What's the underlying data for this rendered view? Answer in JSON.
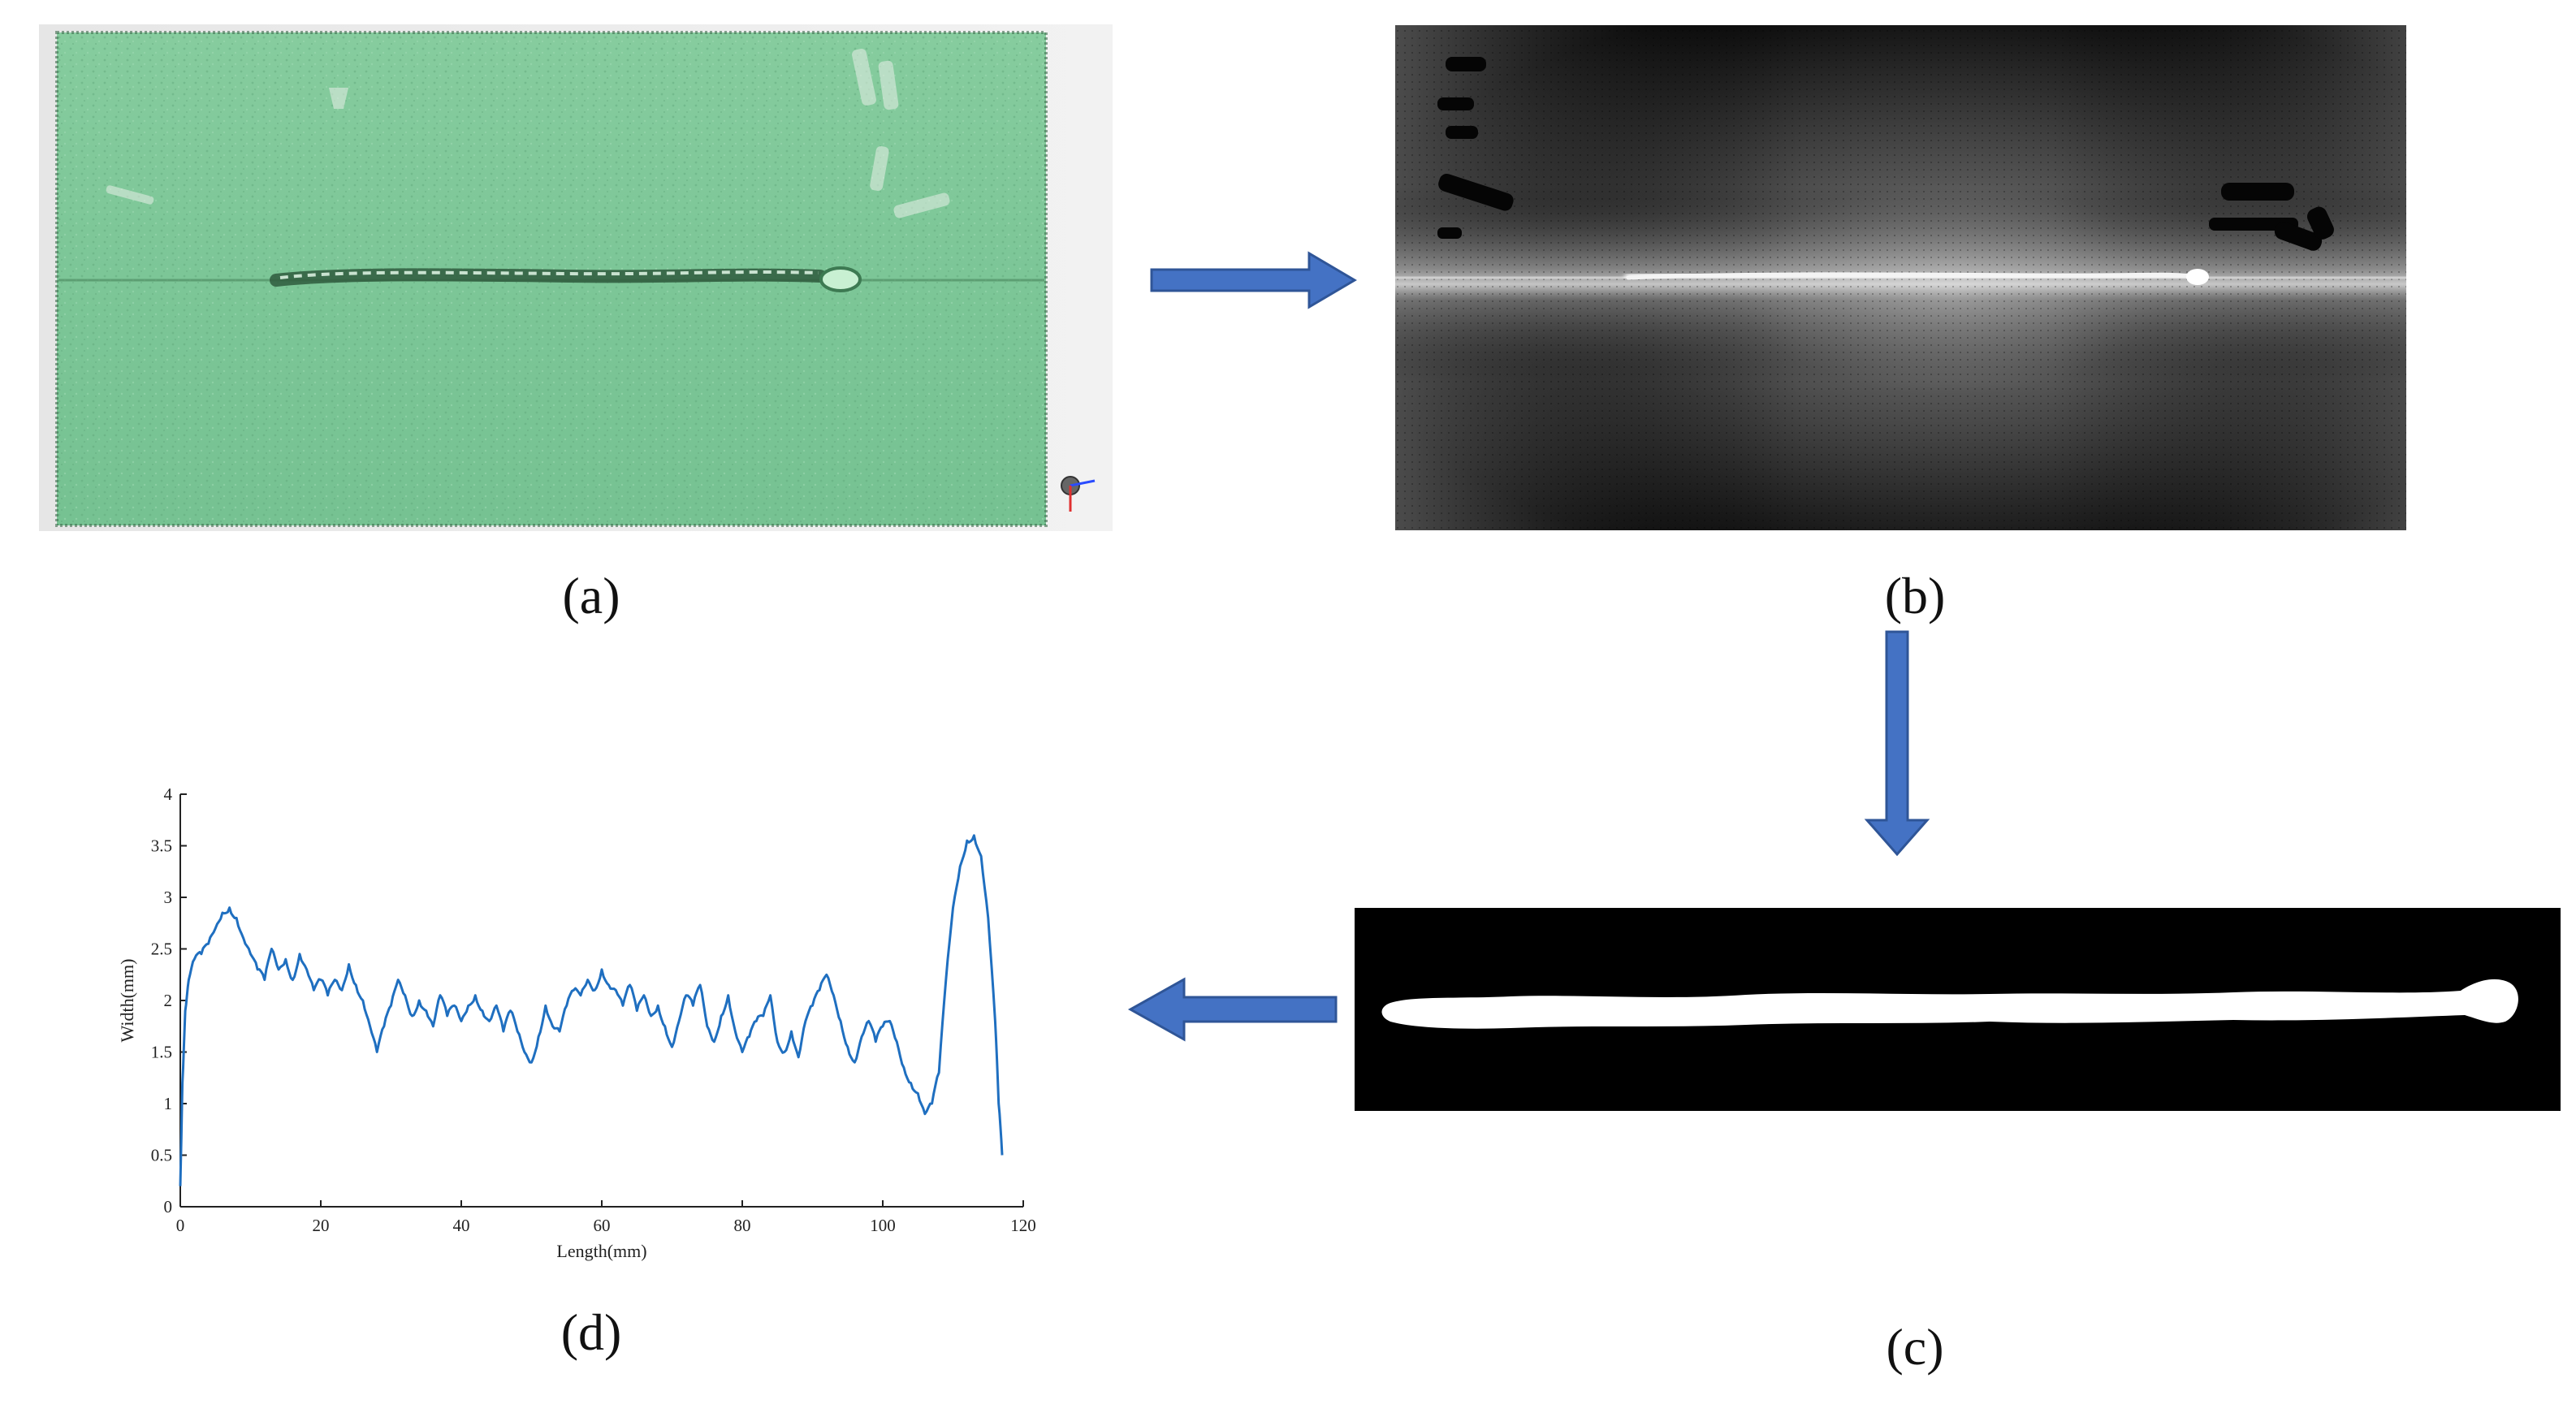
{
  "panels": {
    "a": {
      "caption": "(a)"
    },
    "b": {
      "caption": "(b)"
    },
    "c": {
      "caption": "(c)"
    },
    "d": {
      "caption": "(d)"
    }
  },
  "colors": {
    "arrow_fill": "#4472C4",
    "arrow_stroke": "#2F5597",
    "scan_green": "#7fc79a",
    "line_series": "#1f6fc0"
  },
  "chart_data": {
    "type": "line",
    "xlabel": "Length(mm)",
    "ylabel": "Width(mm)",
    "xlim": [
      0,
      120
    ],
    "ylim": [
      0,
      4
    ],
    "xticks": [
      "0",
      "20",
      "40",
      "60",
      "80",
      "100",
      "120"
    ],
    "yticks": [
      "0",
      "0.5",
      "1",
      "1.5",
      "2",
      "2.5",
      "3",
      "3.5",
      "4"
    ],
    "grid": false,
    "series": [
      {
        "x": [
          0,
          0.3,
          0.7,
          1.2,
          2,
          3,
          4,
          5,
          6,
          7,
          8,
          9,
          10,
          11,
          12,
          13,
          14,
          15,
          16,
          17,
          18,
          19,
          20,
          21,
          22,
          23,
          24,
          25,
          26,
          27,
          28,
          29,
          30,
          31,
          32,
          33,
          34,
          35,
          36,
          37,
          38,
          39,
          40,
          41,
          42,
          43,
          44,
          45,
          46,
          47,
          48,
          49,
          50,
          51,
          52,
          53,
          54,
          55,
          56,
          57,
          58,
          59,
          60,
          61,
          62,
          63,
          64,
          65,
          66,
          67,
          68,
          69,
          70,
          71,
          72,
          73,
          74,
          75,
          76,
          77,
          78,
          79,
          80,
          81,
          82,
          83,
          84,
          85,
          86,
          87,
          88,
          89,
          90,
          91,
          92,
          93,
          94,
          95,
          96,
          97,
          98,
          99,
          100,
          101,
          102,
          103,
          104,
          105,
          106,
          107,
          108,
          109,
          110,
          111,
          112,
          113,
          114,
          115,
          116,
          116.5,
          117
        ],
        "values": [
          0.2,
          1.2,
          1.9,
          2.2,
          2.4,
          2.45,
          2.55,
          2.7,
          2.85,
          2.9,
          2.8,
          2.6,
          2.45,
          2.3,
          2.2,
          2.5,
          2.3,
          2.4,
          2.2,
          2.45,
          2.3,
          2.1,
          2.2,
          2.05,
          2.2,
          2.1,
          2.35,
          2.15,
          2.0,
          1.75,
          1.5,
          1.75,
          1.95,
          2.2,
          2.05,
          1.85,
          2.0,
          1.9,
          1.75,
          2.05,
          1.85,
          1.95,
          1.8,
          1.95,
          2.05,
          1.9,
          1.8,
          1.95,
          1.7,
          1.9,
          1.7,
          1.5,
          1.4,
          1.65,
          1.95,
          1.75,
          1.7,
          1.95,
          2.1,
          2.05,
          2.2,
          2.1,
          2.3,
          2.15,
          2.1,
          1.95,
          2.15,
          1.9,
          2.05,
          1.85,
          1.95,
          1.75,
          1.55,
          1.8,
          2.05,
          1.95,
          2.15,
          1.75,
          1.6,
          1.85,
          2.05,
          1.7,
          1.5,
          1.65,
          1.8,
          1.85,
          2.05,
          1.6,
          1.5,
          1.7,
          1.45,
          1.8,
          1.95,
          2.1,
          2.25,
          2.05,
          1.8,
          1.55,
          1.4,
          1.65,
          1.8,
          1.6,
          1.75,
          1.8,
          1.6,
          1.35,
          1.2,
          1.1,
          0.9,
          1.0,
          1.3,
          2.2,
          2.9,
          3.3,
          3.55,
          3.6,
          3.4,
          2.8,
          1.8,
          1.0,
          0.5
        ]
      }
    ]
  }
}
